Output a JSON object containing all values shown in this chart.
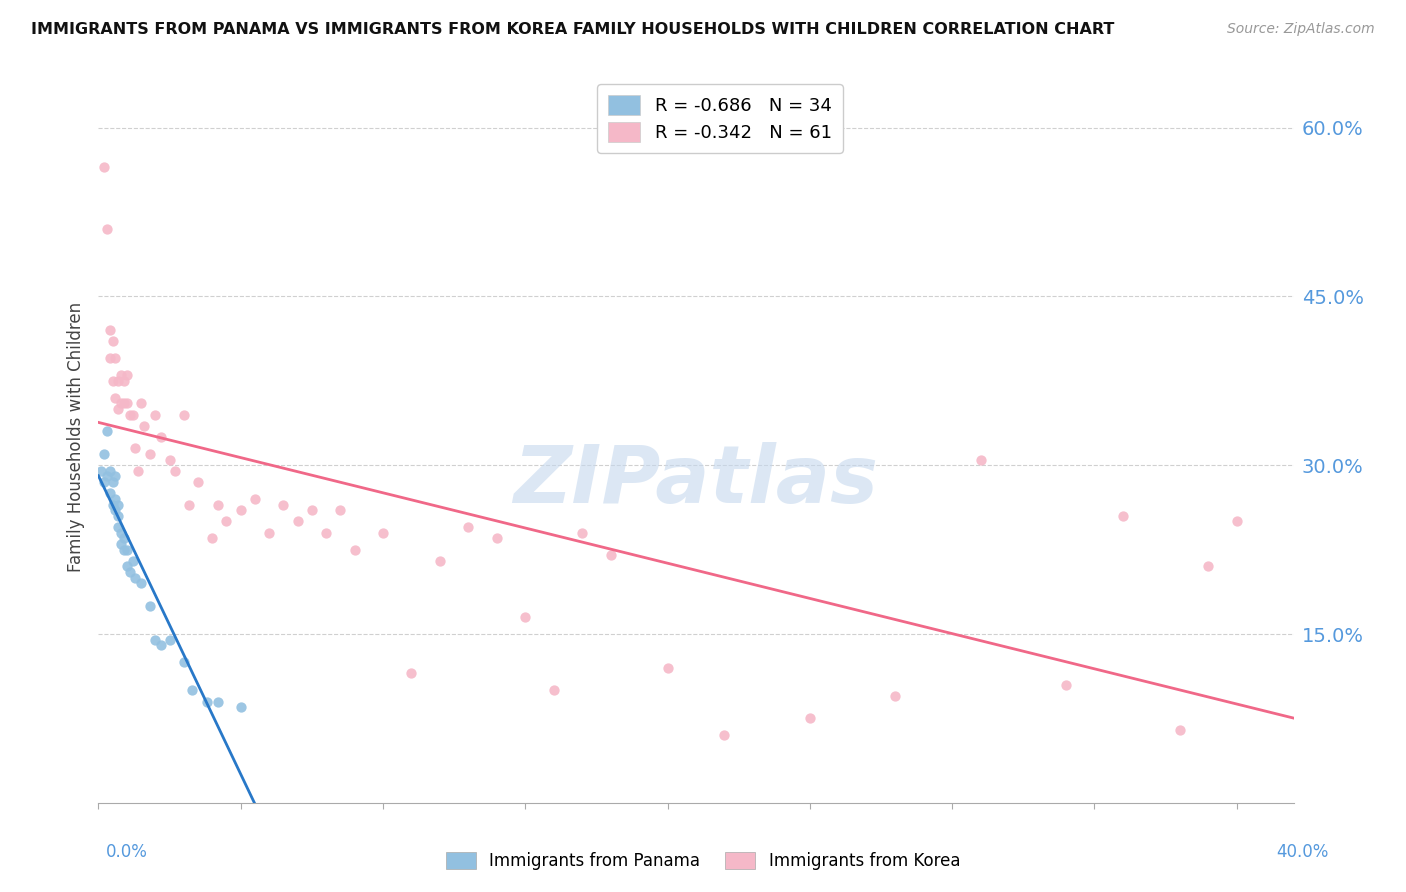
{
  "title": "IMMIGRANTS FROM PANAMA VS IMMIGRANTS FROM KOREA FAMILY HOUSEHOLDS WITH CHILDREN CORRELATION CHART",
  "source": "Source: ZipAtlas.com",
  "ylabel": "Family Households with Children",
  "right_ytick_vals": [
    0.6,
    0.45,
    0.3,
    0.15
  ],
  "panama_color": "#92c0e0",
  "korea_color": "#f5b8c8",
  "panama_line_color": "#2878c8",
  "korea_line_color": "#f06888",
  "watermark": "ZIPatlas",
  "panama_x": [
    0.001,
    0.002,
    0.002,
    0.003,
    0.003,
    0.004,
    0.004,
    0.005,
    0.005,
    0.006,
    0.006,
    0.006,
    0.007,
    0.007,
    0.007,
    0.008,
    0.008,
    0.009,
    0.009,
    0.01,
    0.01,
    0.011,
    0.012,
    0.013,
    0.015,
    0.018,
    0.02,
    0.022,
    0.025,
    0.03,
    0.033,
    0.038,
    0.042,
    0.05
  ],
  "panama_y": [
    0.295,
    0.31,
    0.285,
    0.33,
    0.29,
    0.295,
    0.275,
    0.285,
    0.265,
    0.29,
    0.27,
    0.26,
    0.265,
    0.255,
    0.245,
    0.24,
    0.23,
    0.235,
    0.225,
    0.21,
    0.225,
    0.205,
    0.215,
    0.2,
    0.195,
    0.175,
    0.145,
    0.14,
    0.145,
    0.125,
    0.1,
    0.09,
    0.09,
    0.085
  ],
  "korea_x": [
    0.002,
    0.003,
    0.004,
    0.004,
    0.005,
    0.005,
    0.006,
    0.006,
    0.007,
    0.007,
    0.008,
    0.008,
    0.009,
    0.009,
    0.01,
    0.01,
    0.011,
    0.012,
    0.013,
    0.014,
    0.015,
    0.016,
    0.018,
    0.02,
    0.022,
    0.025,
    0.027,
    0.03,
    0.032,
    0.035,
    0.04,
    0.042,
    0.045,
    0.05,
    0.055,
    0.06,
    0.065,
    0.07,
    0.075,
    0.08,
    0.085,
    0.09,
    0.1,
    0.11,
    0.12,
    0.13,
    0.14,
    0.15,
    0.16,
    0.17,
    0.18,
    0.2,
    0.22,
    0.25,
    0.28,
    0.31,
    0.34,
    0.36,
    0.38,
    0.39,
    0.4
  ],
  "korea_y": [
    0.565,
    0.51,
    0.42,
    0.395,
    0.41,
    0.375,
    0.395,
    0.36,
    0.375,
    0.35,
    0.38,
    0.355,
    0.375,
    0.355,
    0.38,
    0.355,
    0.345,
    0.345,
    0.315,
    0.295,
    0.355,
    0.335,
    0.31,
    0.345,
    0.325,
    0.305,
    0.295,
    0.345,
    0.265,
    0.285,
    0.235,
    0.265,
    0.25,
    0.26,
    0.27,
    0.24,
    0.265,
    0.25,
    0.26,
    0.24,
    0.26,
    0.225,
    0.24,
    0.115,
    0.215,
    0.245,
    0.235,
    0.165,
    0.1,
    0.24,
    0.22,
    0.12,
    0.06,
    0.075,
    0.095,
    0.305,
    0.105,
    0.255,
    0.065,
    0.21,
    0.25
  ],
  "ylim": [
    0.0,
    0.65
  ],
  "xlim": [
    0.0,
    0.42
  ],
  "legend_r_panama": "R = -0.686",
  "legend_n_panama": "N = 34",
  "legend_r_korea": "R = -0.342",
  "legend_n_korea": "N = 61"
}
